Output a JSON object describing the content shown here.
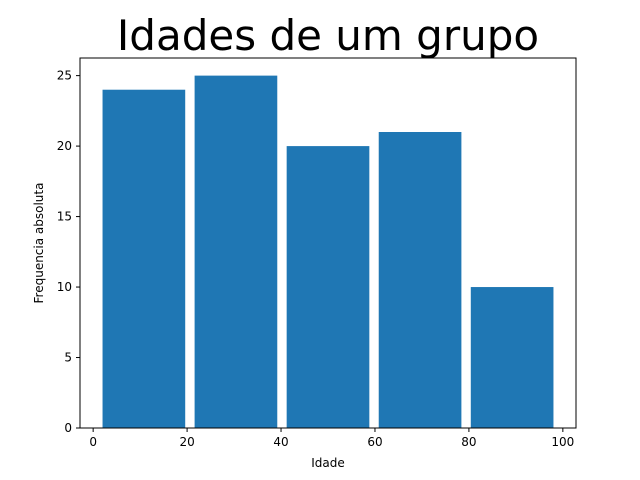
{
  "chart_data": {
    "type": "bar",
    "title": "Idades de um grupo",
    "xlabel": "Idade",
    "ylabel": "Frequencia absoluta",
    "bins": [
      {
        "x_start": 2,
        "x_end": 19.6,
        "value": 24
      },
      {
        "x_start": 21.6,
        "x_end": 39.2,
        "value": 25
      },
      {
        "x_start": 41.2,
        "x_end": 58.8,
        "value": 20
      },
      {
        "x_start": 60.8,
        "x_end": 78.4,
        "value": 21
      },
      {
        "x_start": 80.4,
        "x_end": 98,
        "value": 10
      }
    ],
    "xlim": [
      -2.8,
      102.8
    ],
    "ylim": [
      0,
      26.25
    ],
    "x_ticks": [
      0,
      20,
      40,
      60,
      80,
      100
    ],
    "y_ticks": [
      0,
      5,
      10,
      15,
      20,
      25
    ],
    "bar_color": "#1f77b4",
    "grid": false
  }
}
